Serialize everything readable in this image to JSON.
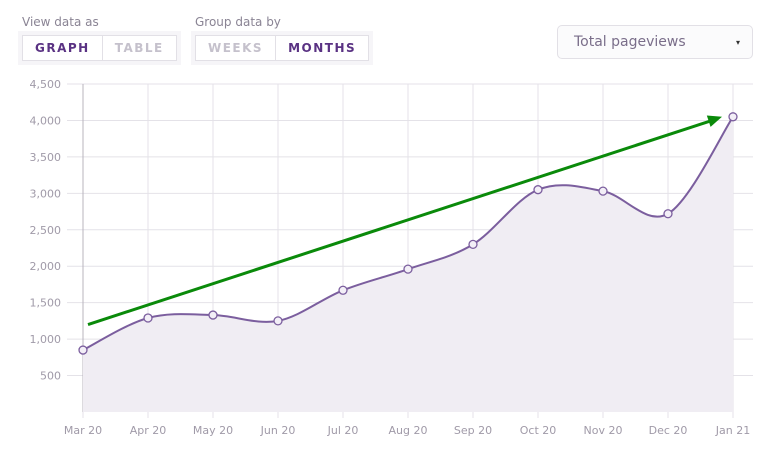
{
  "controls": {
    "view_label": "View data as",
    "view_options": [
      "GRAPH",
      "TABLE"
    ],
    "view_selected": "GRAPH",
    "group_label": "Group data by",
    "group_options": [
      "WEEKS",
      "MONTHS"
    ],
    "group_selected": "MONTHS",
    "metric_select": "Total pageviews",
    "metric_caret": "▾"
  },
  "chart_data": {
    "type": "area",
    "title": "",
    "xlabel": "",
    "ylabel": "",
    "categories": [
      "Mar 20",
      "Apr 20",
      "May 20",
      "Jun 20",
      "Jul 20",
      "Aug 20",
      "Sep 20",
      "Oct 20",
      "Nov 20",
      "Dec 20",
      "Jan 21"
    ],
    "series": [
      {
        "values": [
          850,
          1290,
          1330,
          1250,
          1670,
          1960,
          2300,
          3050,
          3030,
          2720,
          4050
        ]
      }
    ],
    "ylim": [
      0,
      4500
    ],
    "yticks": [
      "500",
      "1,000",
      "1,500",
      "2,000",
      "2,500",
      "3,000",
      "3,500",
      "4,000",
      "4,500"
    ],
    "ytick_values": [
      500,
      1000,
      1500,
      2000,
      2500,
      3000,
      3500,
      4000,
      4500
    ],
    "grid": true,
    "line_color": "#7b5e9e",
    "fill_color": "#f0edf3",
    "annotation": {
      "type": "trend-arrow",
      "color": "#0a8a0a",
      "from": {
        "x": "Mar 20",
        "y": 1200
      },
      "to": {
        "x": "Jan 21",
        "y": 4050
      }
    }
  }
}
